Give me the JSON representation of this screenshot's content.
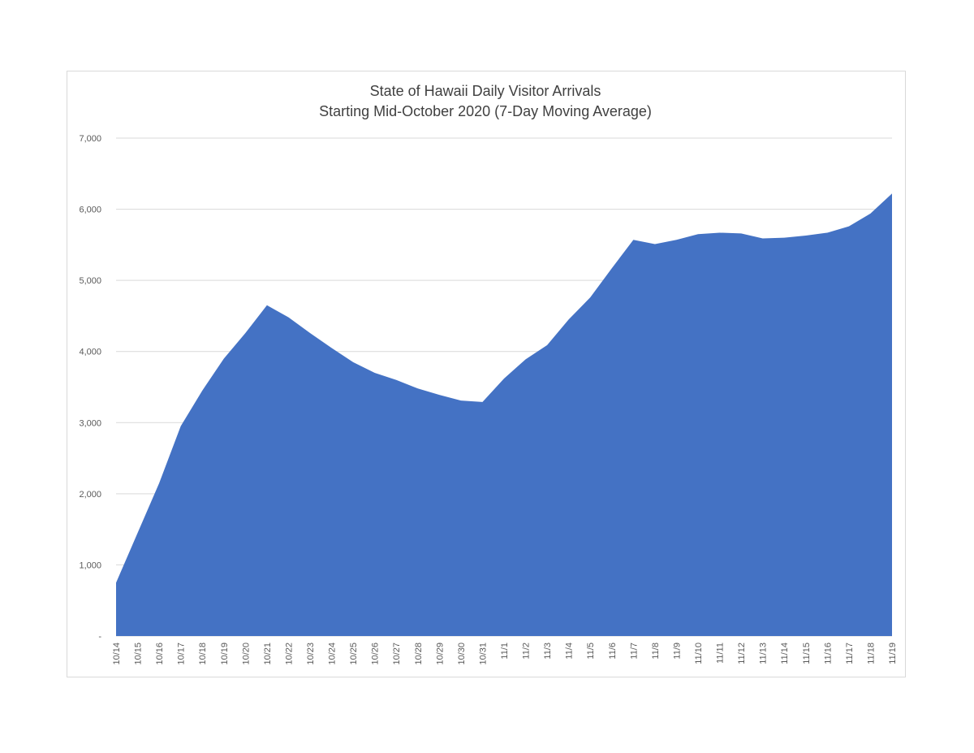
{
  "chart_data": {
    "type": "area",
    "title": "State of Hawaii Daily Visitor Arrivals",
    "subtitle": "Starting Mid-October 2020 (7-Day Moving Average)",
    "categories": [
      "10/14",
      "10/15",
      "10/16",
      "10/17",
      "10/18",
      "10/19",
      "10/20",
      "10/21",
      "10/22",
      "10/23",
      "10/24",
      "10/25",
      "10/26",
      "10/27",
      "10/28",
      "10/29",
      "10/30",
      "10/31",
      "11/1",
      "11/2",
      "11/3",
      "11/4",
      "11/5",
      "11/6",
      "11/7",
      "11/8",
      "11/9",
      "11/10",
      "11/11",
      "11/12",
      "11/13",
      "11/14",
      "11/15",
      "11/16",
      "11/17",
      "11/18",
      "11/19"
    ],
    "values": [
      750,
      1450,
      2150,
      2950,
      3450,
      3900,
      4260,
      4650,
      4480,
      4260,
      4050,
      3850,
      3700,
      3600,
      3480,
      3390,
      3310,
      3290,
      3620,
      3890,
      4090,
      4450,
      4760,
      5170,
      5570,
      5510,
      5570,
      5650,
      5670,
      5660,
      5590,
      5600,
      5630,
      5670,
      5760,
      5940,
      6220
    ],
    "color": "#4472c4",
    "ylim": [
      0,
      7000
    ],
    "yticks": [
      {
        "value": 0,
        "label": "-"
      },
      {
        "value": 1000,
        "label": "1,000"
      },
      {
        "value": 2000,
        "label": "2,000"
      },
      {
        "value": 3000,
        "label": "3,000"
      },
      {
        "value": 4000,
        "label": "4,000"
      },
      {
        "value": 5000,
        "label": "5,000"
      },
      {
        "value": 6000,
        "label": "6,000"
      },
      {
        "value": 7000,
        "label": "7,000"
      }
    ],
    "grid": true
  }
}
